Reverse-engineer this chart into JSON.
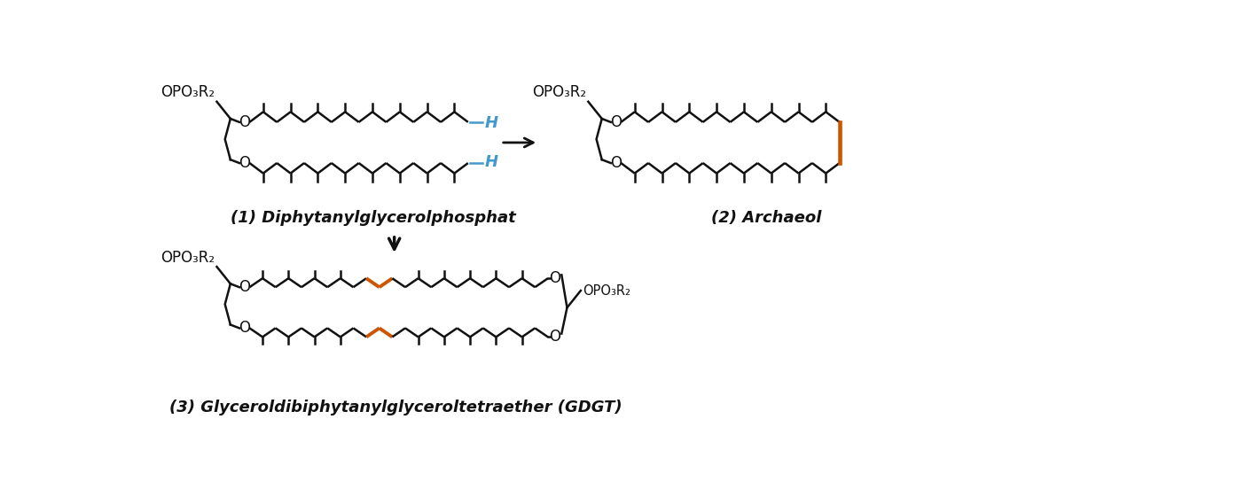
{
  "bg": "#ffffff",
  "black": "#111111",
  "blue": "#4499cc",
  "orange": "#cc5500",
  "lw": 1.8,
  "lw_orange": 2.8,
  "label1": "(1) Diphytanylglycerolphosphat",
  "label2": "(2) Archaeol",
  "label3": "(3) Glyceroldibiphytanylglyceroltetraether (GDGT)",
  "fs_label": 13,
  "fs_chem": 12,
  "fs_chem_small": 10.5
}
